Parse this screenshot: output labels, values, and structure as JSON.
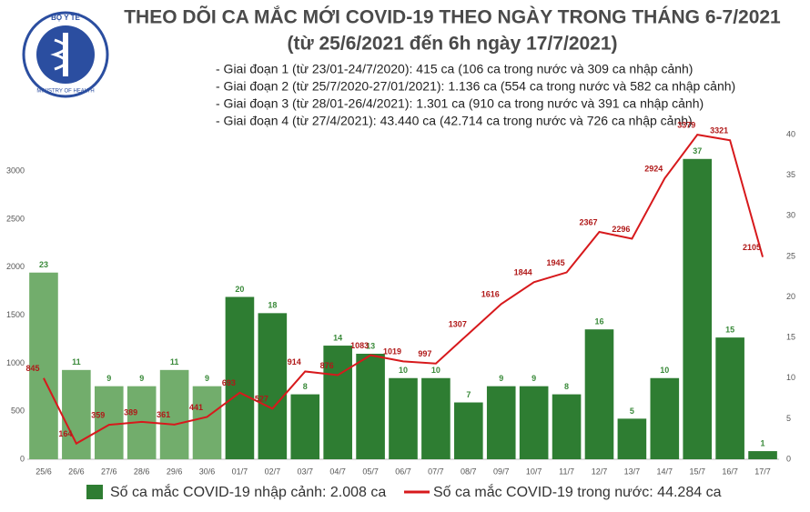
{
  "logo": {
    "top": "BỘ Y TẾ",
    "bottom": "MINISTRY OF HEALTH"
  },
  "chart_data": {
    "type": "combo",
    "title": "THEO DÕI CA MẮC MỚI COVID-19 THEO NGÀY TRONG THÁNG 6-7/2021",
    "subtitle": "(từ 25/6/2021 đến 6h ngày 17/7/2021)",
    "notes": [
      "- Giai đoạn 1 (từ 23/01-24/7/2020): 415 ca (106 ca trong nước và 309 ca nhập cảnh)",
      "- Giai đoạn 2 (từ 25/7/2020-27/01/2021): 1.136 ca (554 ca trong nước và 582 ca nhập cảnh)",
      "- Giai đoạn 3 (từ 28/01-26/4/2021): 1.301 ca (910 ca trong nước và 391 ca nhập cảnh)",
      "- Giai đoạn 4 (từ 27/4/2021): 43.440 ca (42.714 ca trong nước và 726 ca nhập cảnh)"
    ],
    "categories": [
      "25/6",
      "26/6",
      "27/6",
      "28/6",
      "29/6",
      "30/6",
      "01/7",
      "02/7",
      "03/7",
      "04/7",
      "05/7",
      "06/7",
      "07/7",
      "08/7",
      "09/7",
      "10/7",
      "11/7",
      "12/7",
      "13/7",
      "14/7",
      "15/7",
      "16/7",
      "17/7"
    ],
    "series": [
      {
        "name": "Số ca mắc COVID-19 nhập cảnh: 2.008 ca",
        "type": "bar",
        "axis": "y2",
        "color": "#2e7d32",
        "colors": [
          "#72ad6c",
          "#72ad6c",
          "#72ad6c",
          "#72ad6c",
          "#72ad6c",
          "#72ad6c",
          "#2e7d32",
          "#2e7d32",
          "#2e7d32",
          "#2e7d32",
          "#2e7d32",
          "#2e7d32",
          "#2e7d32",
          "#2e7d32",
          "#2e7d32",
          "#2e7d32",
          "#2e7d32",
          "#2e7d32",
          "#2e7d32",
          "#2e7d32",
          "#2e7d32",
          "#2e7d32",
          "#2e7d32"
        ],
        "values": [
          23,
          11,
          9,
          9,
          11,
          9,
          20,
          18,
          8,
          14,
          13,
          10,
          10,
          7,
          9,
          9,
          8,
          16,
          5,
          10,
          37,
          15,
          1
        ]
      },
      {
        "name": "Số ca mắc COVID-19 trong nước: 44.284 ca",
        "type": "line",
        "color": "#d7191c",
        "values": [
          845,
          164,
          359,
          389,
          361,
          441,
          693,
          527,
          914,
          876,
          1083,
          1019,
          997,
          1307,
          1616,
          1844,
          1945,
          2367,
          2296,
          2924,
          3379,
          3321,
          2105
        ]
      }
    ],
    "ylim": [
      0,
      3380
    ],
    "yticks": [
      0,
      500,
      1000,
      1500,
      2000,
      2500,
      3000
    ],
    "y2lim": [
      0,
      40
    ],
    "y2ticks": [
      0,
      5,
      10,
      15,
      20,
      25,
      30,
      35,
      40
    ]
  }
}
